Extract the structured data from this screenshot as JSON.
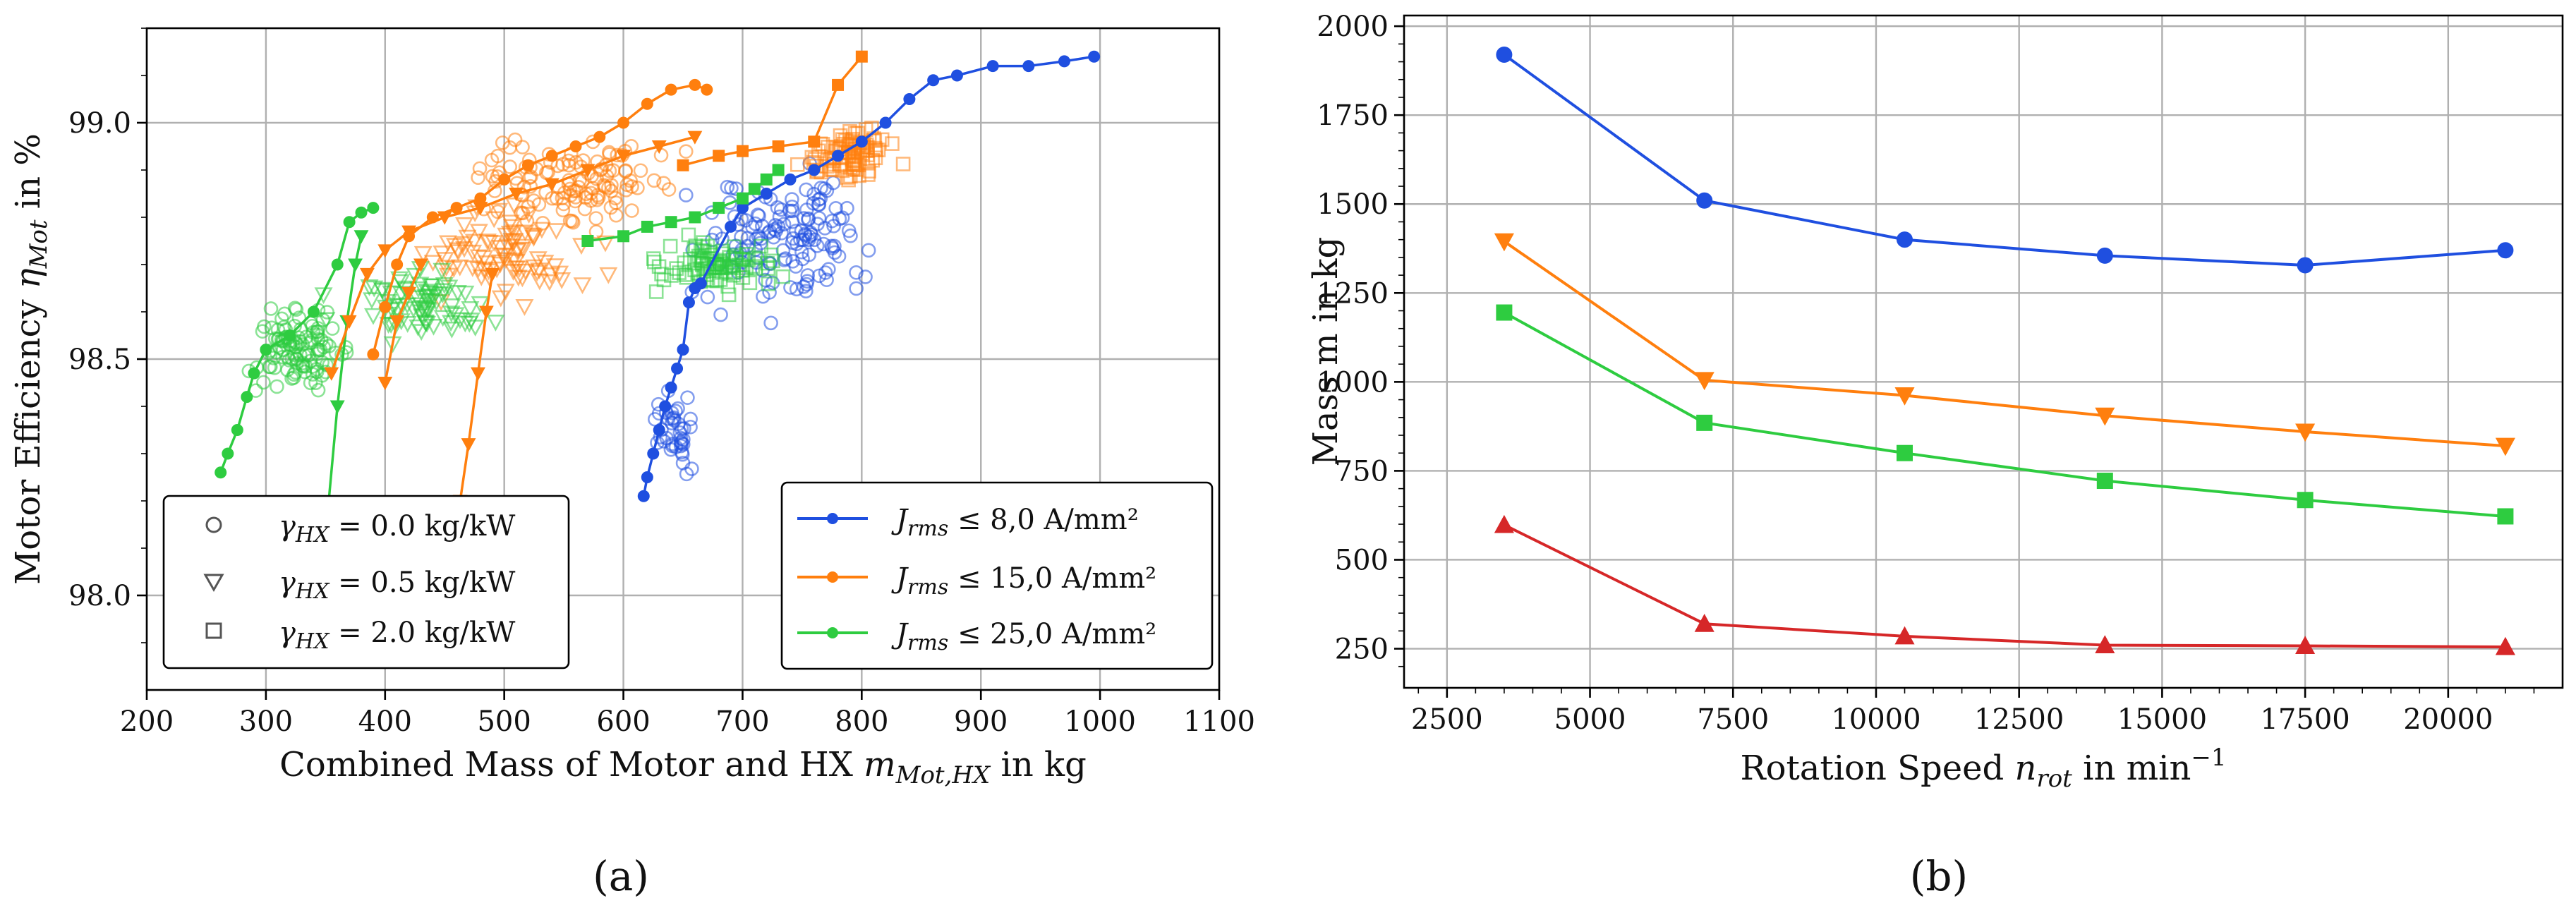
{
  "chart_data": [
    {
      "id": "a",
      "type": "scatter",
      "caption": "(a)",
      "xlabel": "Combined Mass of Motor and HX m_{Mot,HX} in kg",
      "xlabel_parts": [
        "Combined Mass of Motor and HX ",
        "m",
        "Mot,HX",
        " in kg"
      ],
      "ylabel": "Motor Efficiency η_{Mot} in %",
      "ylabel_parts": [
        "Motor Efficiency ",
        "η",
        "Mot",
        " in %"
      ],
      "xlim": [
        200,
        1100
      ],
      "ylim": [
        97.8,
        99.2
      ],
      "xticks": [
        200,
        300,
        400,
        500,
        600,
        700,
        800,
        900,
        1000,
        1100
      ],
      "yticks": [
        98.0,
        98.5,
        99.0
      ],
      "ytick_labels": [
        "98.0",
        "98.5",
        "99.0"
      ],
      "colors": {
        "J8": "#1f4fe0",
        "J15": "#ff7f0e",
        "J25": "#2ecc40",
        "gray": "#555555"
      },
      "legend_gamma": {
        "placement": "lower-left",
        "entries": [
          {
            "marker": "circle",
            "label": "γ_{HX} = 0.0 kg/kW",
            "sym": "γ",
            "sub": "HX",
            "rest": " = 0.0 kg/kW"
          },
          {
            "marker": "triangle",
            "label": "γ_{HX} = 0.5 kg/kW",
            "sym": "γ",
            "sub": "HX",
            "rest": " = 0.5 kg/kW"
          },
          {
            "marker": "square",
            "label": "γ_{HX} = 2.0 kg/kW",
            "sym": "γ",
            "sub": "HX",
            "rest": " = 2.0 kg/kW"
          }
        ]
      },
      "legend_current": {
        "placement": "lower-right",
        "entries": [
          {
            "series": "J8",
            "label": "J_{rms} ≤ 8,0 A/mm²",
            "sym": "J",
            "sub": "rms",
            "rest": " ≤ 8,0 A/mm²"
          },
          {
            "series": "J15",
            "label": "J_{rms} ≤ 15,0 A/mm²",
            "sym": "J",
            "sub": "rms",
            "rest": " ≤ 15,0 A/mm²"
          },
          {
            "series": "J25",
            "label": "J_{rms} ≤ 25,0 A/mm²",
            "sym": "J",
            "sub": "rms",
            "rest": " ≤ 25,0 A/mm²"
          }
        ]
      },
      "pareto_fronts": [
        {
          "series": "J8",
          "marker": "circle",
          "points": [
            [
              617,
              98.21
            ],
            [
              620,
              98.25
            ],
            [
              625,
              98.3
            ],
            [
              630,
              98.35
            ],
            [
              635,
              98.4
            ],
            [
              640,
              98.44
            ],
            [
              645,
              98.48
            ],
            [
              650,
              98.52
            ],
            [
              655,
              98.62
            ],
            [
              660,
              98.65
            ],
            [
              665,
              98.66
            ],
            [
              690,
              98.78
            ],
            [
              700,
              98.82
            ],
            [
              720,
              98.85
            ],
            [
              740,
              98.88
            ],
            [
              760,
              98.9
            ],
            [
              780,
              98.93
            ],
            [
              800,
              98.96
            ],
            [
              820,
              99.0
            ],
            [
              840,
              99.05
            ],
            [
              860,
              99.09
            ],
            [
              880,
              99.1
            ],
            [
              910,
              99.12
            ],
            [
              940,
              99.12
            ],
            [
              970,
              99.13
            ],
            [
              995,
              99.14
            ]
          ]
        },
        {
          "series": "J15",
          "marker": "circle",
          "points": [
            [
              390,
              98.51
            ],
            [
              400,
              98.61
            ],
            [
              410,
              98.7
            ],
            [
              420,
              98.76
            ],
            [
              440,
              98.8
            ],
            [
              460,
              98.82
            ],
            [
              480,
              98.84
            ],
            [
              500,
              98.88
            ],
            [
              520,
              98.91
            ],
            [
              540,
              98.93
            ],
            [
              560,
              98.95
            ],
            [
              580,
              98.97
            ],
            [
              600,
              99.0
            ],
            [
              620,
              99.04
            ],
            [
              640,
              99.07
            ],
            [
              660,
              99.08
            ],
            [
              670,
              99.07
            ]
          ]
        },
        {
          "series": "J15",
          "marker": "triangle",
          "points": [
            [
              355,
              98.47
            ],
            [
              370,
              98.58
            ],
            [
              385,
              98.68
            ],
            [
              400,
              98.73
            ],
            [
              420,
              98.77
            ],
            [
              450,
              98.8
            ],
            [
              480,
              98.82
            ],
            [
              510,
              98.85
            ],
            [
              540,
              98.87
            ],
            [
              570,
              98.9
            ],
            [
              600,
              98.93
            ],
            [
              630,
              98.95
            ],
            [
              660,
              98.97
            ]
          ]
        },
        {
          "series": "J15",
          "marker": "square",
          "points": [
            [
              650,
              98.91
            ],
            [
              680,
              98.93
            ],
            [
              700,
              98.94
            ],
            [
              730,
              98.95
            ],
            [
              760,
              98.96
            ],
            [
              780,
              99.08
            ],
            [
              800,
              99.14
            ]
          ]
        },
        {
          "series": "J25",
          "marker": "circle",
          "points": [
            [
              262,
              98.26
            ],
            [
              268,
              98.3
            ],
            [
              276,
              98.35
            ],
            [
              284,
              98.42
            ],
            [
              290,
              98.47
            ],
            [
              300,
              98.52
            ],
            [
              320,
              98.55
            ],
            [
              340,
              98.6
            ],
            [
              360,
              98.7
            ],
            [
              370,
              98.79
            ],
            [
              380,
              98.81
            ],
            [
              390,
              98.82
            ]
          ]
        },
        {
          "series": "J25",
          "marker": "square",
          "points": [
            [
              570,
              98.75
            ],
            [
              600,
              98.76
            ],
            [
              620,
              98.78
            ],
            [
              640,
              98.79
            ],
            [
              660,
              98.8
            ],
            [
              680,
              98.82
            ],
            [
              700,
              98.84
            ],
            [
              710,
              98.86
            ],
            [
              720,
              98.88
            ],
            [
              730,
              98.9
            ]
          ]
        }
      ],
      "front_segments": [
        {
          "series": "J15",
          "points": [
            [
              400,
              98.45
            ],
            [
              410,
              98.58
            ],
            [
              420,
              98.64
            ],
            [
              430,
              98.7
            ]
          ]
        },
        {
          "series": "J15",
          "points": [
            [
              463,
              98.2
            ],
            [
              470,
              98.32
            ],
            [
              478,
              98.47
            ],
            [
              485,
              98.6
            ],
            [
              490,
              98.68
            ]
          ]
        },
        {
          "series": "J25",
          "points": [
            [
              352,
              98.18
            ],
            [
              360,
              98.4
            ],
            [
              368,
              98.58
            ],
            [
              375,
              98.7
            ],
            [
              380,
              98.76
            ]
          ]
        }
      ],
      "scatter_clouds": [
        {
          "series": "J8",
          "marker": "circle",
          "cx": 740,
          "cy": 98.75,
          "sx": 130,
          "sy": 0.25,
          "n": 140,
          "seed": 3
        },
        {
          "series": "J8",
          "marker": "circle",
          "cx": 640,
          "cy": 98.35,
          "sx": 30,
          "sy": 0.15,
          "n": 40,
          "seed": 5
        },
        {
          "series": "J15",
          "marker": "circle",
          "cx": 560,
          "cy": 98.88,
          "sx": 140,
          "sy": 0.17,
          "n": 120,
          "seed": 7
        },
        {
          "series": "J15",
          "marker": "triangle",
          "cx": 500,
          "cy": 98.72,
          "sx": 130,
          "sy": 0.18,
          "n": 90,
          "seed": 11
        },
        {
          "series": "J15",
          "marker": "square",
          "cx": 790,
          "cy": 98.93,
          "sx": 70,
          "sy": 0.1,
          "n": 90,
          "seed": 13
        },
        {
          "series": "J25",
          "marker": "circle",
          "cx": 330,
          "cy": 98.52,
          "sx": 60,
          "sy": 0.15,
          "n": 110,
          "seed": 17
        },
        {
          "series": "J25",
          "marker": "triangle",
          "cx": 430,
          "cy": 98.62,
          "sx": 120,
          "sy": 0.14,
          "n": 80,
          "seed": 19
        },
        {
          "series": "J25",
          "marker": "square",
          "cx": 680,
          "cy": 98.7,
          "sx": 100,
          "sy": 0.1,
          "n": 90,
          "seed": 23
        }
      ]
    },
    {
      "id": "b",
      "type": "line",
      "caption": "(b)",
      "xlabel": "Rotation Speed n_{rot} in min^{-1}",
      "xlabel_parts": [
        "Rotation Speed ",
        "n",
        "rot",
        " in min",
        "−1"
      ],
      "ylabel": "Mass m in kg",
      "xlim": [
        1750,
        22000
      ],
      "ylim": [
        140,
        2030
      ],
      "xticks": [
        2500,
        5000,
        7500,
        10000,
        12500,
        15000,
        17500,
        20000
      ],
      "yticks": [
        250,
        500,
        750,
        1000,
        1250,
        1500,
        1750,
        2000
      ],
      "x": [
        3500,
        7000,
        10500,
        14000,
        17500,
        21000
      ],
      "series": [
        {
          "name": "blue",
          "color": "#1f4fe0",
          "marker": "circle",
          "values": [
            1920,
            1510,
            1400,
            1355,
            1328,
            1370
          ]
        },
        {
          "name": "orange",
          "color": "#ff7f0e",
          "marker": "triangle-down",
          "values": [
            1395,
            1005,
            962,
            905,
            860,
            820
          ]
        },
        {
          "name": "green",
          "color": "#2ecc40",
          "marker": "square",
          "values": [
            1195,
            885,
            800,
            722,
            668,
            622
          ]
        },
        {
          "name": "red",
          "color": "#d62728",
          "marker": "triangle-up",
          "values": [
            598,
            320,
            285,
            260,
            258,
            255
          ]
        }
      ]
    }
  ]
}
